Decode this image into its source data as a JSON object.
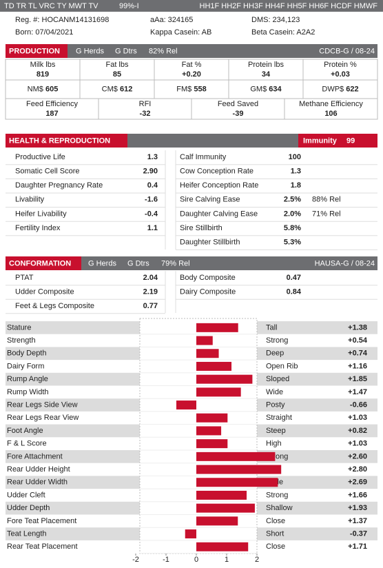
{
  "top_bar": {
    "codes": "TD TR TL VRC TY MWT TV",
    "reliability": "99%-I",
    "haplotypes": "HH1F HH2F HH3F HH4F HH5F HH6F HCDF HMWF"
  },
  "info": [
    [
      "Reg. #: HOCANM14131698",
      "aAa: 324165",
      "DMS: 234,123"
    ],
    [
      "Born: 07/04/2021",
      "Kappa Casein: AB",
      "Beta Casein: A2A2"
    ]
  ],
  "production": {
    "title": "PRODUCTION",
    "g_herds": "G Herds",
    "g_dtrs": "G Dtrs",
    "rel": "82% Rel",
    "source": "CDCB-G / 08-24",
    "rows": [
      [
        {
          "label": "Milk lbs",
          "value": "819"
        },
        {
          "label": "Fat lbs",
          "value": "85"
        },
        {
          "label": "Fat %",
          "value": "+0.20"
        },
        {
          "label": "Protein lbs",
          "value": "34"
        },
        {
          "label": "Protein %",
          "value": "+0.03"
        }
      ],
      [
        {
          "label": "NM$",
          "value": "605"
        },
        {
          "label": "CM$",
          "value": "612"
        },
        {
          "label": "FM$",
          "value": "558"
        },
        {
          "label": "GM$",
          "value": "634"
        },
        {
          "label": "DWP$",
          "value": "622"
        }
      ],
      [
        {
          "label": "Feed Efficiency",
          "value": "187"
        },
        {
          "label": "RFI",
          "value": "-32"
        },
        {
          "label": "Feed Saved",
          "value": "-39"
        },
        {
          "label": "Methane Efficiency",
          "value": "106"
        }
      ]
    ]
  },
  "health": {
    "title": "HEALTH & REPRODUCTION",
    "immunity_label": "Immunity",
    "immunity": "99",
    "left": [
      {
        "label": "Productive Life",
        "value": "1.3"
      },
      {
        "label": "Somatic Cell Score",
        "value": "2.90"
      },
      {
        "label": "Daughter Pregnancy Rate",
        "value": "0.4"
      },
      {
        "label": "Livability",
        "value": "-1.6"
      },
      {
        "label": "Heifer Livability",
        "value": "-0.4"
      },
      {
        "label": "Fertility Index",
        "value": "1.1"
      }
    ],
    "right": [
      {
        "label": "Calf Immunity",
        "value": "100"
      },
      {
        "label": "Cow Conception Rate",
        "value": "1.3"
      },
      {
        "label": "Heifer Conception Rate",
        "value": "1.8"
      },
      {
        "label": "Sire Calving Ease",
        "value": "2.5%",
        "rel": "88% Rel"
      },
      {
        "label": "Daughter Calving Ease",
        "value": "2.0%",
        "rel": "71% Rel"
      },
      {
        "label": "Sire Stillbirth",
        "value": "5.8%"
      },
      {
        "label": "Daughter Stillbirth",
        "value": "5.3%"
      }
    ]
  },
  "conformation": {
    "title": "CONFORMATION",
    "g_herds": "G Herds",
    "g_dtrs": "G Dtrs",
    "rel": "79% Rel",
    "source": "HAUSA-G / 08-24",
    "left": [
      {
        "label": "PTAT",
        "value": "2.04"
      },
      {
        "label": "Udder Composite",
        "value": "2.19"
      },
      {
        "label": "Feet & Legs Composite",
        "value": "0.77"
      }
    ],
    "right": [
      {
        "label": "Body Composite",
        "value": "0.47"
      },
      {
        "label": "Dairy Composite",
        "value": "0.84"
      }
    ]
  },
  "chart_data": {
    "type": "bar",
    "color": "#c8102e",
    "categories": [
      "Stature",
      "Strength",
      "Body Depth",
      "Dairy Form",
      "Rump Angle",
      "Rump Width",
      "Rear Legs Side View",
      "Rear Legs Rear View",
      "Foot Angle",
      "F & L Score",
      "Fore Attachment",
      "Rear Udder Height",
      "Rear Udder Width",
      "Udder Cleft",
      "Udder Depth",
      "Fore Teat Placement",
      "Teat Length",
      "Rear Teat Placement"
    ],
    "descriptors": [
      "Tall",
      "Strong",
      "Deep",
      "Open Rib",
      "Sloped",
      "Wide",
      "Posty",
      "Straight",
      "Steep",
      "High",
      "Strong",
      "High",
      "Wide",
      "Strong",
      "Shallow",
      "Close",
      "Short",
      "Close"
    ],
    "values": [
      1.38,
      0.54,
      0.74,
      1.16,
      1.85,
      1.47,
      -0.66,
      1.03,
      0.82,
      1.03,
      2.6,
      2.8,
      2.69,
      1.66,
      1.93,
      1.37,
      -0.37,
      1.71
    ],
    "value_labels": [
      "+1.38",
      "+0.54",
      "+0.74",
      "+1.16",
      "+1.85",
      "+1.47",
      "-0.66",
      "+1.03",
      "+0.82",
      "+1.03",
      "+2.60",
      "+2.80",
      "+2.69",
      "+1.66",
      "+1.93",
      "+1.37",
      "-0.37",
      "+1.71"
    ],
    "xlim": [
      -2,
      2
    ],
    "xticks": [
      -2,
      -1,
      0,
      1,
      2
    ]
  }
}
